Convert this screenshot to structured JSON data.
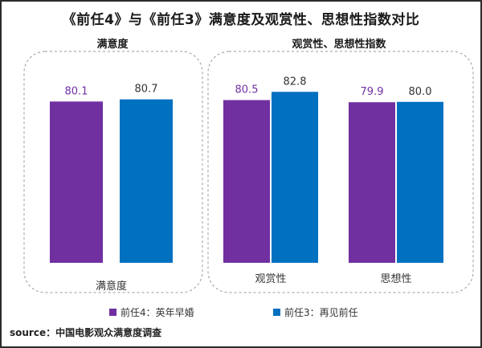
{
  "colors": {
    "qianren4": "#7030A0",
    "qianren3": "#0070C0",
    "frame": "#2b2b2b",
    "panel_border": "#999999"
  },
  "title": "《前任4》与《前任3》满意度及观赏性、思想性指数对比",
  "source": "source：中国电影观众满意度调查",
  "chart_data": [
    {
      "type": "bar",
      "title": "满意度",
      "categories": [
        "满意度"
      ],
      "series": [
        {
          "name": "前任4：英年早婚",
          "values": [
            80.1
          ],
          "value_labels": [
            "80.1"
          ]
        },
        {
          "name": "前任3：再见前任",
          "values": [
            80.7
          ],
          "value_labels": [
            "80.7"
          ]
        }
      ],
      "grid": false,
      "legend": "bottom"
    },
    {
      "type": "bar",
      "title": "观赏性、思想性指数",
      "categories": [
        "观赏性",
        "思想性"
      ],
      "series": [
        {
          "name": "前任4：英年早婚",
          "values": [
            80.5,
            79.9
          ],
          "value_labels": [
            "80.5",
            "79.9"
          ]
        },
        {
          "name": "前任3：再见前任",
          "values": [
            82.8,
            80.0
          ],
          "value_labels": [
            "82.8",
            "80.0"
          ]
        }
      ],
      "grid": false,
      "legend": "bottom"
    }
  ]
}
